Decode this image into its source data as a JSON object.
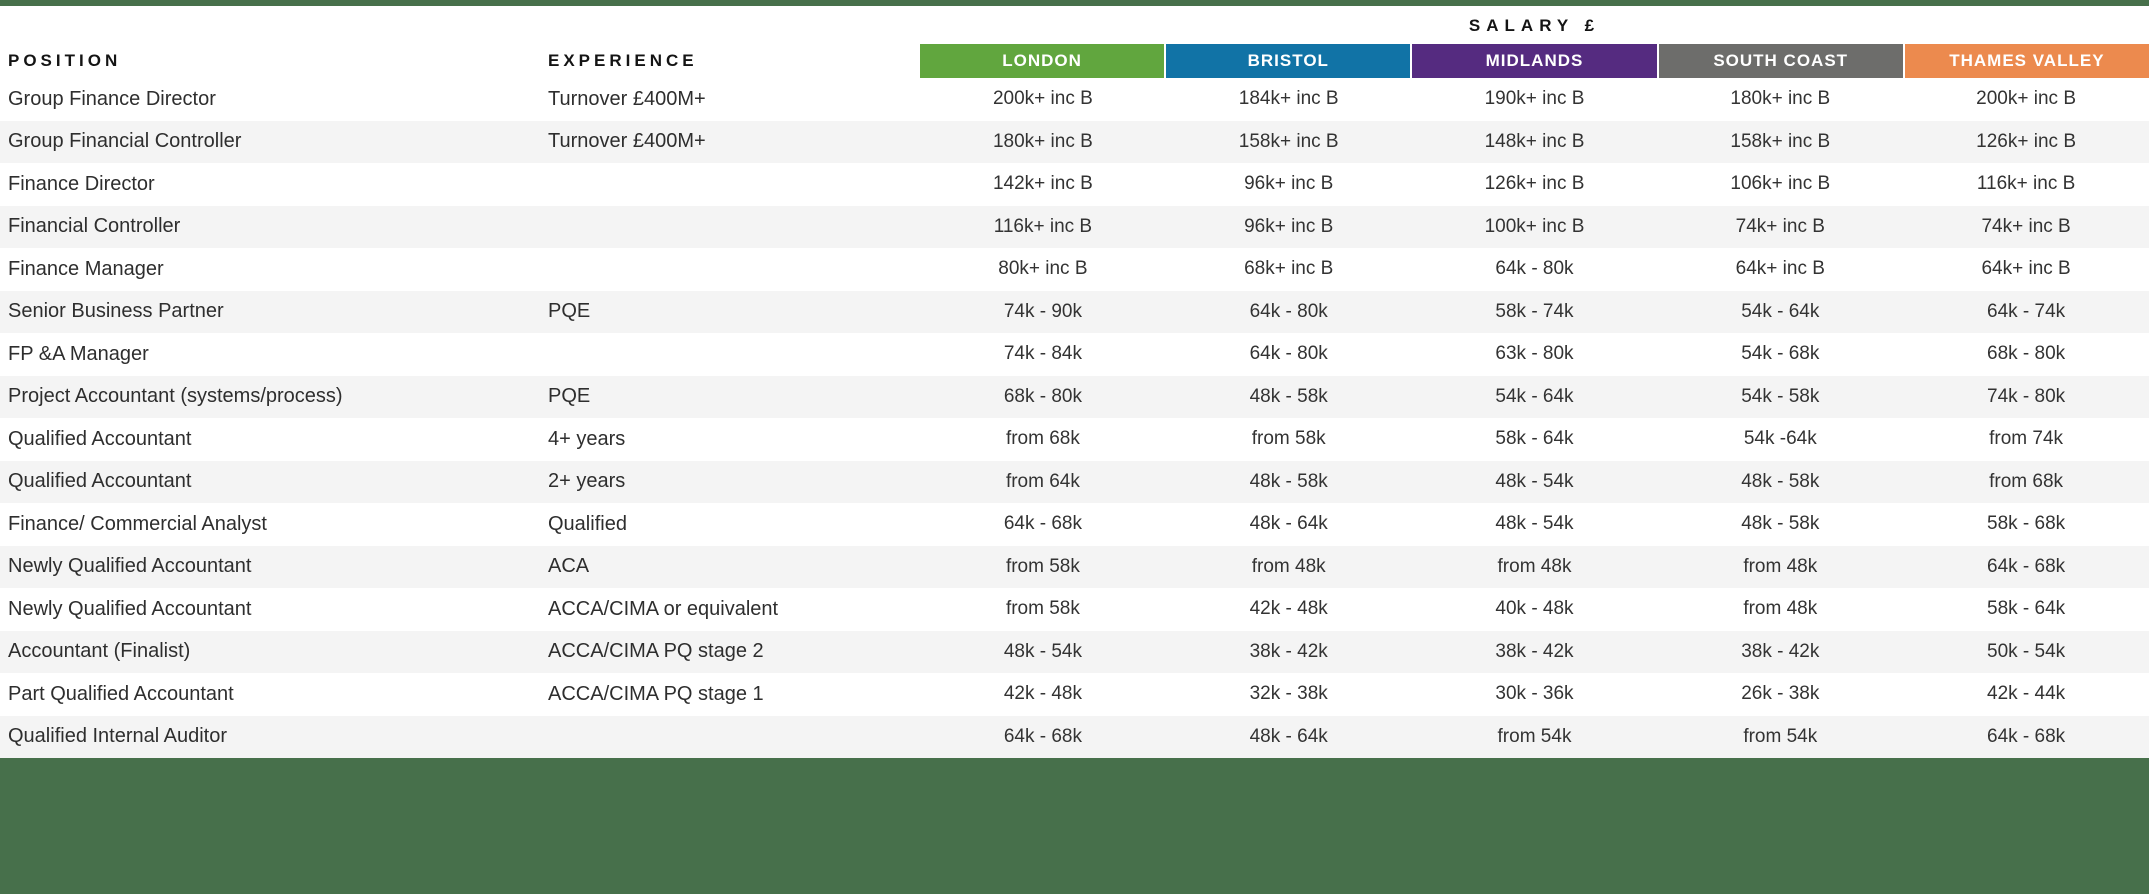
{
  "page": {
    "salary_header": "SALARY £",
    "position_header": "POSITION",
    "experience_header": "EXPERIENCE"
  },
  "columns": [
    {
      "label": "LONDON",
      "color": "#61a63e"
    },
    {
      "label": "BRISTOL",
      "color": "#1173a6"
    },
    {
      "label": "MIDLANDS",
      "color": "#552b80"
    },
    {
      "label": "SOUTH COAST",
      "color": "#6d6d6b"
    },
    {
      "label": "THAMES VALLEY",
      "color": "#ec8a4e"
    }
  ],
  "rows": [
    {
      "position": "Group Finance Director",
      "experience": "Turnover £400M+",
      "salaries": [
        "200k+ inc B",
        "184k+ inc B",
        "190k+ inc B",
        "180k+ inc B",
        "200k+ inc B"
      ]
    },
    {
      "position": "Group Financial Controller",
      "experience": "Turnover £400M+",
      "salaries": [
        "180k+ inc B",
        "158k+ inc B",
        "148k+ inc B",
        "158k+ inc B",
        "126k+ inc B"
      ]
    },
    {
      "position": "Finance Director",
      "experience": "",
      "salaries": [
        "142k+ inc B",
        "96k+ inc B",
        "126k+ inc B",
        "106k+ inc B",
        "116k+ inc B"
      ]
    },
    {
      "position": "Financial Controller",
      "experience": "",
      "salaries": [
        "116k+ inc B",
        "96k+ inc B",
        "100k+ inc B",
        "74k+ inc B",
        "74k+ inc B"
      ]
    },
    {
      "position": "Finance Manager",
      "experience": "",
      "salaries": [
        "80k+ inc B",
        "68k+ inc B",
        "64k - 80k",
        "64k+ inc B",
        "64k+ inc B"
      ]
    },
    {
      "position": "Senior Business Partner",
      "experience": "PQE",
      "salaries": [
        "74k - 90k",
        "64k - 80k",
        "58k - 74k",
        "54k - 64k",
        "64k - 74k"
      ]
    },
    {
      "position": "FP &A Manager",
      "experience": "",
      "salaries": [
        "74k - 84k",
        "64k - 80k",
        "63k - 80k",
        "54k - 68k",
        "68k - 80k"
      ]
    },
    {
      "position": "Project Accountant (systems/process)",
      "experience": "PQE",
      "salaries": [
        "68k - 80k",
        "48k - 58k",
        "54k - 64k",
        "54k - 58k",
        "74k - 80k"
      ]
    },
    {
      "position": "Qualified Accountant",
      "experience": "4+ years",
      "salaries": [
        "from 68k",
        "from 58k",
        "58k - 64k",
        "54k -64k",
        "from 74k"
      ]
    },
    {
      "position": "Qualified Accountant",
      "experience": "2+ years",
      "salaries": [
        "from 64k",
        "48k - 58k",
        "48k - 54k",
        "48k - 58k",
        "from 68k"
      ]
    },
    {
      "position": "Finance/ Commercial Analyst",
      "experience": "Qualified",
      "salaries": [
        "64k - 68k",
        "48k - 64k",
        "48k - 54k",
        "48k - 58k",
        "58k - 68k"
      ]
    },
    {
      "position": "Newly Qualified Accountant",
      "experience": "ACA",
      "salaries": [
        "from 58k",
        "from 48k",
        "from 48k",
        "from 48k",
        "64k - 68k"
      ]
    },
    {
      "position": "Newly Qualified Accountant",
      "experience": "ACCA/CIMA or equivalent",
      "salaries": [
        "from 58k",
        "42k - 48k",
        "40k - 48k",
        "from 48k",
        "58k - 64k"
      ]
    },
    {
      "position": "Accountant (Finalist)",
      "experience": "ACCA/CIMA PQ stage 2",
      "salaries": [
        "48k - 54k",
        "38k - 42k",
        "38k - 42k",
        "38k - 42k",
        "50k - 54k"
      ]
    },
    {
      "position": "Part Qualified Accountant",
      "experience": "ACCA/CIMA PQ stage 1",
      "salaries": [
        "42k - 48k",
        "32k - 38k",
        "30k - 36k",
        "26k - 38k",
        "42k - 44k"
      ]
    },
    {
      "position": "Qualified Internal Auditor",
      "experience": "",
      "salaries": [
        "64k - 68k",
        "48k - 64k",
        "from 54k",
        "from 54k",
        "64k - 68k"
      ]
    }
  ],
  "theme": {
    "top_bar_color": "#47704b",
    "footer_color": "#47704b",
    "alt_row_color": "#f4f4f4",
    "text_color": "#2e2e2e"
  }
}
